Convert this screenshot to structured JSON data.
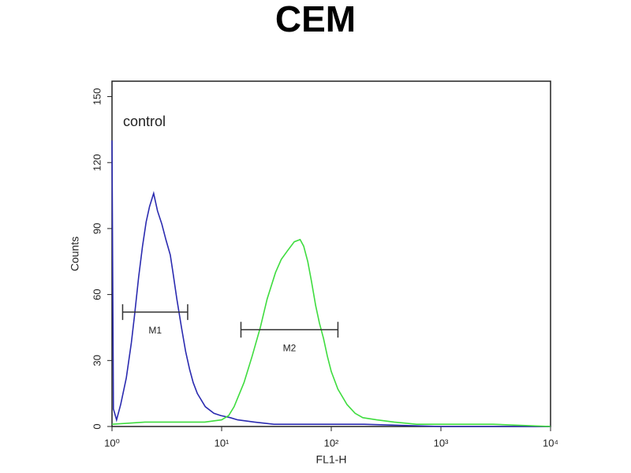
{
  "chart_data": {
    "type": "histogram-line",
    "title": "CEM",
    "xlabel": "FL1-H",
    "ylabel": "Counts",
    "log_x": true,
    "xlim": [
      1,
      10000
    ],
    "xticks": [
      {
        "value": 1,
        "label": "10⁰"
      },
      {
        "value": 10,
        "label": "10¹"
      },
      {
        "value": 100,
        "label": "10²"
      },
      {
        "value": 1000,
        "label": "10³"
      },
      {
        "value": 10000,
        "label": "10⁴"
      }
    ],
    "ylim": [
      0,
      157
    ],
    "yticks": [
      0,
      30,
      60,
      90,
      120,
      150
    ],
    "annotations": [
      "control"
    ],
    "series": [
      {
        "color": "#2b2bb0",
        "x": [
          1,
          1.03,
          1.1,
          1.2,
          1.35,
          1.5,
          1.6,
          1.75,
          1.9,
          2.05,
          2.2,
          2.4,
          2.6,
          2.85,
          3.1,
          3.4,
          3.6,
          3.9,
          4.3,
          4.7,
          5.1,
          5.5,
          6,
          7.1,
          8.5,
          9.8,
          12,
          14,
          20,
          30,
          50,
          100,
          200,
          1000,
          10000
        ],
        "values": [
          130,
          8,
          3,
          10,
          22,
          38,
          50,
          68,
          82,
          93,
          100,
          106,
          98,
          92,
          85,
          78,
          70,
          58,
          45,
          34,
          26,
          20,
          15,
          9,
          6,
          5,
          4,
          3,
          2,
          1,
          1,
          1,
          1,
          0,
          0
        ]
      },
      {
        "color": "#3fdc3f",
        "x": [
          1,
          2,
          4,
          7,
          10,
          11.6,
          13,
          16,
          19,
          22.5,
          26,
          31,
          35,
          40,
          46,
          52,
          56,
          61,
          66,
          72,
          78,
          85,
          92,
          100,
          115,
          139,
          165,
          194,
          260,
          375,
          600,
          1000,
          3000,
          10000
        ],
        "values": [
          1,
          2,
          2,
          2,
          3,
          5,
          9,
          20,
          32,
          45,
          58,
          70,
          76,
          80,
          84,
          85,
          82,
          75,
          66,
          55,
          47,
          40,
          32,
          25,
          17,
          10,
          6,
          4,
          3,
          2,
          1,
          1,
          1,
          0
        ]
      }
    ],
    "markers": [
      {
        "label": "M1",
        "x": [
          1.25,
          4.9
        ],
        "y": 52
      },
      {
        "label": "M2",
        "x": [
          15,
          115
        ],
        "y": 44
      }
    ]
  }
}
